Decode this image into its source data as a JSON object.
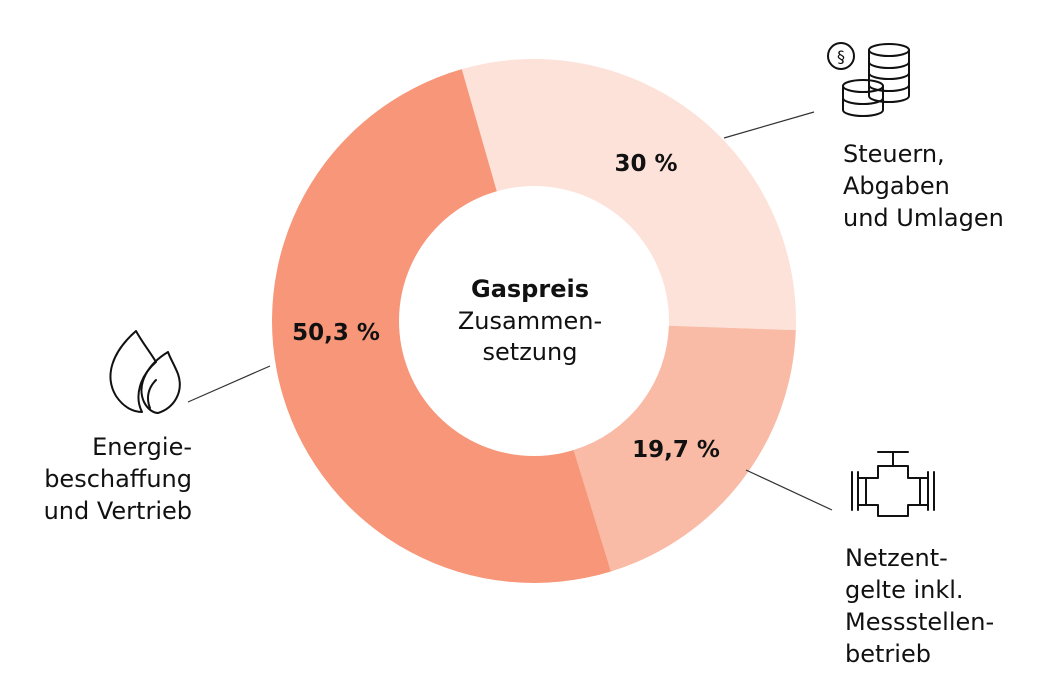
{
  "chart_data": {
    "type": "pie",
    "variant": "donut",
    "center_title": "Gaspreis",
    "center_subtitle": [
      "Zusammen-",
      "setzung"
    ],
    "slices": [
      {
        "label_lines": [
          "Steuern,",
          "Abgaben",
          "und Umlagen"
        ],
        "value": 30,
        "value_label": "30 %",
        "color": "#fde2da",
        "icon": "tax-coins-icon"
      },
      {
        "label_lines": [
          "Netzent-",
          "gelte inkl.",
          "Messstellen-",
          "betrieb"
        ],
        "value": 19.7,
        "value_label": "19,7 %",
        "color": "#f9bba6",
        "icon": "pipe-valve-icon"
      },
      {
        "label_lines": [
          "Energie-",
          "beschaffung",
          "und Vertrieb"
        ],
        "value": 50.3,
        "value_label": "50,3 %",
        "color": "#f79679",
        "icon": "gas-flame-icon"
      }
    ]
  }
}
